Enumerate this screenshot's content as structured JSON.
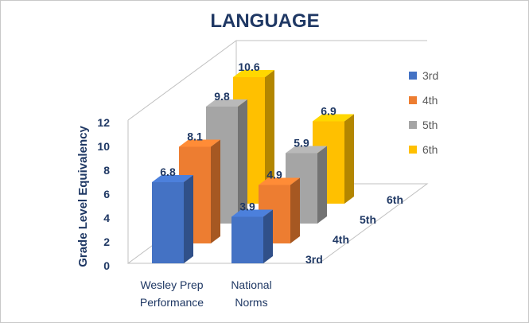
{
  "chart_data": {
    "type": "bar",
    "title": "LANGUAGE",
    "ylabel": "Grade Level Equivalency",
    "xlabel": "",
    "ylim": [
      0,
      12
    ],
    "yticks": [
      0,
      2,
      4,
      6,
      8,
      10,
      12
    ],
    "categories": [
      {
        "line1": "Wesley Prep",
        "line2": "Performance"
      },
      {
        "line1": "National",
        "line2": "Norms"
      }
    ],
    "depth_labels": [
      "3rd",
      "4th",
      "5th",
      "6th"
    ],
    "series": [
      {
        "name": "3rd",
        "color": "#4472c4",
        "values": [
          6.8,
          3.9
        ]
      },
      {
        "name": "4th",
        "color": "#ed7d31",
        "values": [
          8.1,
          4.9
        ]
      },
      {
        "name": "5th",
        "color": "#a5a5a5",
        "values": [
          9.8,
          5.9
        ]
      },
      {
        "name": "6th",
        "color": "#ffc000",
        "values": [
          10.6,
          6.9
        ]
      }
    ],
    "legend_position": "right"
  }
}
